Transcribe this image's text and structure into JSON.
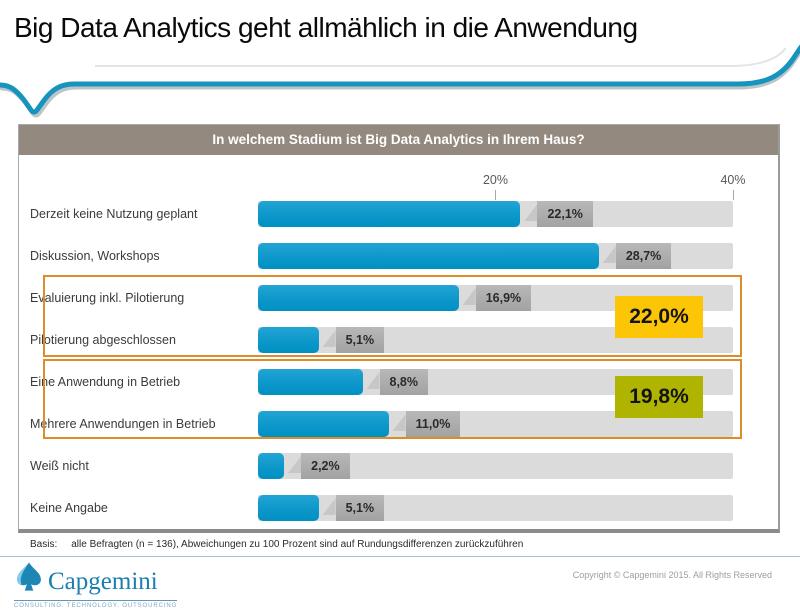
{
  "slide": {
    "title": "Big Data Analytics geht allmählich in die Anwendung",
    "basis_label": "Basis:",
    "basis_text": "alle Befragten (n = 136), Abweichungen zu 100 Prozent sind auf Rundungsdifferenzen zurückzuführen",
    "copyright": "Copyright © Capgemini 2015. All Rights Reserved",
    "logo": {
      "name": "Capgemini",
      "tagline": "CONSULTING. TECHNOLOGY. OUTSOURCING",
      "icon": "capgemini-spade-icon"
    },
    "accent_swoosh_color": "#1794bd"
  },
  "chart_data": {
    "type": "bar",
    "orientation": "horizontal",
    "title": "In welchem Stadium ist Big Data Analytics in Ihrem Haus?",
    "categories": [
      "Derzeit keine Nutzung geplant",
      "Diskussion, Workshops",
      "Evaluierung inkl. Pilotierung",
      "Pilotierung abgeschlossen",
      "Eine Anwendung in Betrieb",
      "Mehrere Anwendungen in Betrieb",
      "Weiß nicht",
      "Keine Angabe"
    ],
    "values": [
      22.1,
      28.7,
      16.9,
      5.1,
      8.8,
      11.0,
      2.2,
      5.1
    ],
    "value_labels": [
      "22,1%",
      "28,7%",
      "16,9%",
      "5,1%",
      "8,8%",
      "11,0%",
      "2,2%",
      "5,1%"
    ],
    "xlim": [
      0,
      40
    ],
    "x_ticks": [
      {
        "value": 20,
        "label": "20%"
      },
      {
        "value": 40,
        "label": "40%"
      }
    ],
    "grid": false,
    "legend": false,
    "groups": [
      {
        "rows": [
          2,
          3
        ],
        "sum_label": "22,0%",
        "highlight_color": "#fcc606",
        "border_color": "#de8b2a"
      },
      {
        "rows": [
          4,
          5
        ],
        "sum_label": "19,8%",
        "highlight_color": "#aeb400",
        "border_color": "#de8b2a"
      }
    ],
    "colors": {
      "bar": "#0d97ca",
      "track": "#dbdbdb",
      "value_box": "#ababab",
      "header_bg": "#93897f",
      "header_text": "#ffffff"
    }
  }
}
